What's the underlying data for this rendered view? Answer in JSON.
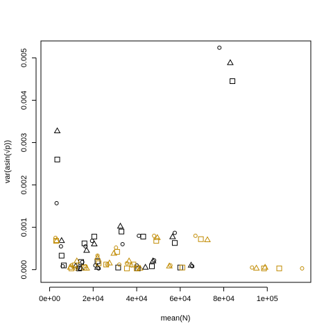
{
  "chart_data": {
    "type": "scatter",
    "xlabel": "mean(N)",
    "ylabel": "var(asin(√p))",
    "xlim": [
      -4000,
      120000
    ],
    "ylim": [
      -0.0003,
      0.0054
    ],
    "xticks": [
      {
        "value": 0,
        "label": "0e+00"
      },
      {
        "value": 20000,
        "label": "2e+04"
      },
      {
        "value": 40000,
        "label": "4e+04"
      },
      {
        "value": 60000,
        "label": "6e+04"
      },
      {
        "value": 80000,
        "label": "8e+04"
      },
      {
        "value": 100000,
        "label": "1e+05"
      }
    ],
    "yticks": [
      {
        "value": 0,
        "label": "0.000"
      },
      {
        "value": 0.001,
        "label": "0.001"
      },
      {
        "value": 0.002,
        "label": "0.002"
      },
      {
        "value": 0.003,
        "label": "0.003"
      },
      {
        "value": 0.004,
        "label": "0.004"
      },
      {
        "value": 0.005,
        "label": "0.005"
      }
    ],
    "grid": false,
    "series": [
      {
        "shape": "circle",
        "color": "#000000",
        "points": [
          [
            3200,
            0.00157
          ],
          [
            5200,
            0.00055
          ],
          [
            6000,
            8e-05
          ],
          [
            13000,
            5e-05
          ],
          [
            15000,
            0.00018
          ],
          [
            16500,
            0.00055
          ],
          [
            19500,
            0.00068
          ],
          [
            21000,
            0.0001
          ],
          [
            22500,
            3e-05
          ],
          [
            33500,
            0.0006
          ],
          [
            40000,
            0.0001
          ],
          [
            41000,
            0.0008
          ],
          [
            48000,
            0.00022
          ],
          [
            57500,
            0.00087
          ],
          [
            65500,
            8e-05
          ],
          [
            78000,
            0.00524
          ]
        ]
      },
      {
        "shape": "triangle",
        "color": "#000000",
        "points": [
          [
            3500,
            0.00327
          ],
          [
            5500,
            0.00068
          ],
          [
            12000,
            8e-05
          ],
          [
            14500,
            3e-05
          ],
          [
            17000,
            0.00045
          ],
          [
            20500,
            0.0006
          ],
          [
            22000,
            5e-05
          ],
          [
            32500,
            0.00102
          ],
          [
            44000,
            5e-05
          ],
          [
            47500,
            0.0002
          ],
          [
            56500,
            0.00077
          ],
          [
            65000,
            0.0001
          ],
          [
            83000,
            0.00488
          ]
        ]
      },
      {
        "shape": "square",
        "color": "#000000",
        "points": [
          [
            3500,
            0.0026
          ],
          [
            5500,
            0.00033
          ],
          [
            6500,
            0.0001
          ],
          [
            13500,
            3e-05
          ],
          [
            14500,
            0.00018
          ],
          [
            16000,
            0.00062
          ],
          [
            20500,
            0.00078
          ],
          [
            22000,
            0.0002
          ],
          [
            31500,
            5e-05
          ],
          [
            33000,
            0.0009
          ],
          [
            40500,
            3e-05
          ],
          [
            43000,
            0.00078
          ],
          [
            47000,
            8e-05
          ],
          [
            57500,
            0.00063
          ],
          [
            60000,
            5e-05
          ],
          [
            84000,
            0.00445
          ]
        ]
      },
      {
        "shape": "circle",
        "color": "#c08a00",
        "points": [
          [
            2700,
            0.00075
          ],
          [
            10000,
            0.0001
          ],
          [
            12000,
            3e-05
          ],
          [
            16500,
            8e-05
          ],
          [
            22000,
            0.00033
          ],
          [
            26500,
            0.00012
          ],
          [
            30500,
            0.00052
          ],
          [
            32000,
            0.00012
          ],
          [
            35500,
            0.00015
          ],
          [
            37500,
            0.0001
          ],
          [
            40500,
            5e-05
          ],
          [
            48000,
            0.0008
          ],
          [
            55500,
            0.0001
          ],
          [
            67000,
            0.0008
          ],
          [
            93000,
            5e-05
          ],
          [
            116000,
            3e-05
          ]
        ]
      },
      {
        "shape": "triangle",
        "color": "#c08a00",
        "points": [
          [
            3200,
            0.00068
          ],
          [
            9500,
            5e-05
          ],
          [
            12500,
            0.0002
          ],
          [
            17000,
            3e-05
          ],
          [
            22000,
            0.00028
          ],
          [
            27500,
            0.00015
          ],
          [
            29500,
            0.00038
          ],
          [
            36500,
            0.0002
          ],
          [
            41500,
            3e-05
          ],
          [
            49500,
            0.00075
          ],
          [
            55000,
            8e-05
          ],
          [
            72500,
            0.0007
          ],
          [
            95000,
            3e-05
          ],
          [
            99000,
            5e-05
          ]
        ]
      },
      {
        "shape": "square",
        "color": "#c08a00",
        "points": [
          [
            3000,
            0.00068
          ],
          [
            10000,
            3e-05
          ],
          [
            11500,
            0.0001
          ],
          [
            16000,
            5e-05
          ],
          [
            22500,
            0.00015
          ],
          [
            26000,
            0.00012
          ],
          [
            31000,
            0.00042
          ],
          [
            35500,
            3e-05
          ],
          [
            38500,
            0.00012
          ],
          [
            40000,
            3e-05
          ],
          [
            49000,
            0.00068
          ],
          [
            61000,
            5e-05
          ],
          [
            69500,
            0.00072
          ],
          [
            98500,
            3e-05
          ],
          [
            105500,
            3e-05
          ]
        ]
      }
    ]
  }
}
